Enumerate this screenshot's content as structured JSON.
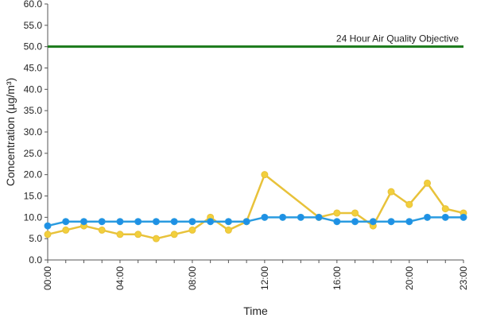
{
  "chart_data": {
    "type": "line",
    "xlabel": "Time",
    "ylabel": "Concentration (µg/m³)",
    "ylim": [
      0,
      60
    ],
    "ytick_step": 5,
    "y_ticks": [
      "0.0",
      "5.0",
      "10.0",
      "15.0",
      "20.0",
      "25.0",
      "30.0",
      "35.0",
      "40.0",
      "45.0",
      "50.0",
      "55.0",
      "60.0"
    ],
    "x_hours": [
      0,
      1,
      2,
      3,
      4,
      5,
      6,
      7,
      8,
      9,
      10,
      11,
      12,
      13,
      14,
      15,
      16,
      17,
      18,
      19,
      20,
      21,
      22,
      23
    ],
    "x_ticks": [
      {
        "hour": 0,
        "label": "00:00"
      },
      {
        "hour": 4,
        "label": "04:00"
      },
      {
        "hour": 8,
        "label": "08:00"
      },
      {
        "hour": 12,
        "label": "12:00"
      },
      {
        "hour": 16,
        "label": "16:00"
      },
      {
        "hour": 20,
        "label": "20:00"
      },
      {
        "hour": 23,
        "label": "23:00"
      }
    ],
    "objective": {
      "value": 50,
      "label": "24 Hour Air Quality Objective",
      "color": "#1a7a1a"
    },
    "grid": false,
    "series": [
      {
        "color": "#e8c23a",
        "marker_fill": "#f2cf3c",
        "values": [
          6,
          7,
          8,
          7,
          6,
          6,
          5,
          6,
          7,
          10,
          7,
          9,
          20,
          null,
          null,
          10,
          11,
          11,
          8,
          16,
          13,
          18,
          12,
          11
        ]
      },
      {
        "color": "#2a9be0",
        "marker_fill": "#1e90e6",
        "values": [
          8,
          9,
          9,
          9,
          9,
          9,
          9,
          9,
          9,
          9,
          9,
          9,
          10,
          10,
          10,
          10,
          9,
          9,
          9,
          9,
          9,
          10,
          10,
          10
        ]
      }
    ]
  }
}
